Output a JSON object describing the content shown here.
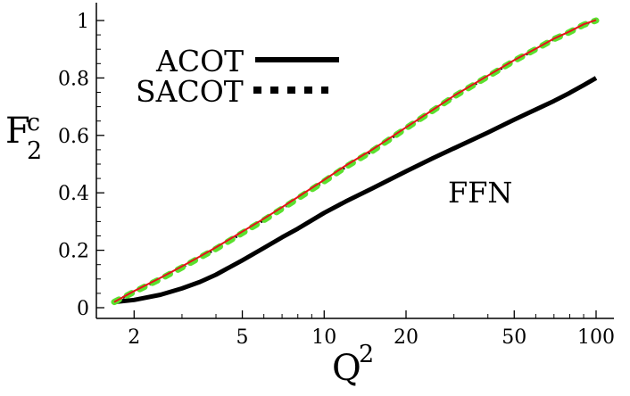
{
  "chart_data": {
    "type": "line",
    "x_scale": "log",
    "xlim": [
      1.69,
      100
    ],
    "ylim": [
      0,
      1.05
    ],
    "x_ticks": [
      {
        "value": 2,
        "label": "2"
      },
      {
        "value": 5,
        "label": "5"
      },
      {
        "value": 10,
        "label": "10"
      },
      {
        "value": 20,
        "label": "20"
      },
      {
        "value": 50,
        "label": "50"
      },
      {
        "value": 100,
        "label": "100"
      }
    ],
    "y_ticks": [
      {
        "value": 0,
        "label": "0"
      },
      {
        "value": 0.2,
        "label": "0.2"
      },
      {
        "value": 0.4,
        "label": "0.4"
      },
      {
        "value": 0.6,
        "label": "0.6"
      },
      {
        "value": 0.8,
        "label": "0.8"
      },
      {
        "value": 1,
        "label": "1"
      }
    ],
    "xlabel": {
      "base": "Q",
      "sup": "2"
    },
    "ylabel": {
      "base": "F",
      "sub": "2",
      "sup": "c"
    },
    "grid": false,
    "legend_position": "top-left",
    "series": [
      {
        "name": "ACOT",
        "style": "solid",
        "color": "#000000",
        "x": [
          1.69,
          2,
          2.5,
          3,
          3.5,
          4,
          5,
          6,
          7,
          8,
          10,
          12,
          15,
          20,
          25,
          30,
          40,
          50,
          60,
          70,
          80,
          90,
          100
        ],
        "y": [
          0.02,
          0.027,
          0.045,
          0.067,
          0.09,
          0.115,
          0.165,
          0.208,
          0.245,
          0.275,
          0.33,
          0.37,
          0.415,
          0.475,
          0.52,
          0.555,
          0.61,
          0.655,
          0.69,
          0.72,
          0.748,
          0.775,
          0.8
        ]
      },
      {
        "name": "SACOT",
        "style": "dotted",
        "color": "#000000",
        "x": [
          1.69,
          2,
          2.5,
          3,
          3.5,
          4,
          5,
          6,
          7,
          8,
          10,
          12,
          15,
          20,
          25,
          30,
          40,
          50,
          60,
          70,
          80,
          90,
          100
        ],
        "y": [
          0.02,
          0.055,
          0.1,
          0.14,
          0.175,
          0.205,
          0.26,
          0.305,
          0.345,
          0.38,
          0.44,
          0.49,
          0.545,
          0.625,
          0.685,
          0.735,
          0.805,
          0.86,
          0.9,
          0.935,
          0.96,
          0.985,
          1.0
        ]
      },
      {
        "name": "",
        "style": "solid",
        "color": "#e8101a",
        "x": [
          1.69,
          2,
          2.5,
          3,
          3.5,
          4,
          5,
          6,
          7,
          8,
          10,
          12,
          15,
          20,
          25,
          30,
          40,
          50,
          60,
          70,
          80,
          90,
          100
        ],
        "y": [
          0.02,
          0.058,
          0.104,
          0.144,
          0.179,
          0.21,
          0.265,
          0.31,
          0.35,
          0.385,
          0.445,
          0.495,
          0.55,
          0.628,
          0.688,
          0.738,
          0.808,
          0.862,
          0.902,
          0.937,
          0.962,
          0.987,
          1.002
        ]
      },
      {
        "name": "",
        "style": "dashed",
        "color": "#5ae02e",
        "x": [
          1.69,
          2,
          2.5,
          3,
          3.5,
          4,
          5,
          6,
          7,
          8,
          10,
          12,
          15,
          20,
          25,
          30,
          40,
          50,
          60,
          70,
          80,
          90,
          100
        ],
        "y": [
          0.02,
          0.055,
          0.1,
          0.14,
          0.175,
          0.205,
          0.26,
          0.305,
          0.345,
          0.38,
          0.44,
          0.49,
          0.545,
          0.625,
          0.685,
          0.735,
          0.805,
          0.86,
          0.9,
          0.935,
          0.96,
          0.985,
          1.0
        ]
      }
    ],
    "legend": [
      {
        "label": "ACOT",
        "style": "solid"
      },
      {
        "label": "SACOT",
        "style": "dotted"
      }
    ],
    "annotations": [
      {
        "text": "FFN",
        "at_x": 20,
        "at_y": 0.4
      }
    ]
  }
}
